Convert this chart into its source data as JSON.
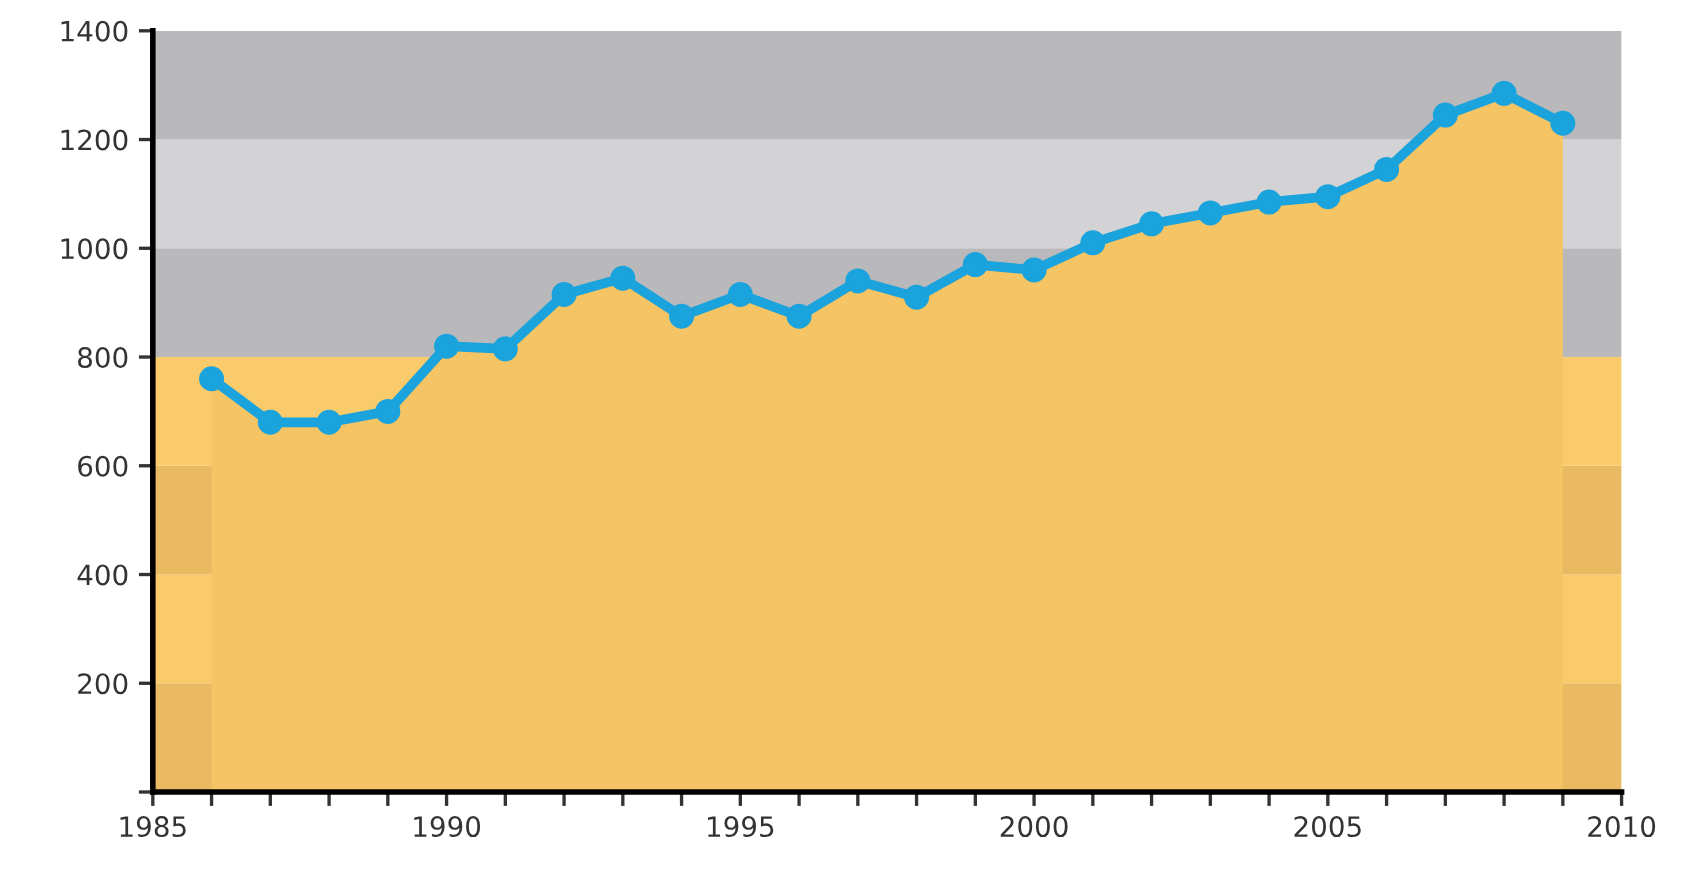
{
  "chart_data": {
    "type": "line",
    "x": [
      1986,
      1987,
      1988,
      1989,
      1990,
      1991,
      1992,
      1993,
      1994,
      1995,
      1996,
      1997,
      1998,
      1999,
      2000,
      2001,
      2002,
      2003,
      2004,
      2005,
      2006,
      2007,
      2008,
      2009
    ],
    "series": [
      {
        "type": "area",
        "marker": "none",
        "color": "#f5c465",
        "values": [
          760,
          680,
          680,
          700,
          820,
          815,
          915,
          945,
          875,
          915,
          875,
          940,
          910,
          970,
          960,
          1010,
          1045,
          1065,
          1085,
          1095,
          1145,
          1245,
          1285,
          1230
        ]
      },
      {
        "color": "#1aa3dc",
        "values": [
          760,
          680,
          680,
          700,
          820,
          815,
          915,
          945,
          875,
          915,
          875,
          940,
          910,
          970,
          960,
          1010,
          1045,
          1065,
          1085,
          1095,
          1145,
          1245,
          1285,
          1230
        ]
      }
    ],
    "marker": "circle",
    "line_style": "solid",
    "grid": false,
    "legend": false,
    "xlim": [
      1985,
      2010
    ],
    "ylim": [
      0,
      1400
    ],
    "xticks": [
      1985,
      {
        "value": 1986,
        "label": null
      },
      {
        "value": 1987,
        "label": null
      },
      {
        "value": 1988,
        "label": null
      },
      {
        "value": 1989,
        "label": null
      },
      1990,
      {
        "value": 1991,
        "label": null
      },
      {
        "value": 1992,
        "label": null
      },
      {
        "value": 1993,
        "label": null
      },
      {
        "value": 1994,
        "label": null
      },
      1995,
      {
        "value": 1996,
        "label": null
      },
      {
        "value": 1997,
        "label": null
      },
      {
        "value": 1998,
        "label": null
      },
      {
        "value": 1999,
        "label": null
      },
      2000,
      {
        "value": 2001,
        "label": null
      },
      {
        "value": 2002,
        "label": null
      },
      {
        "value": 2003,
        "label": null
      },
      {
        "value": 2004,
        "label": null
      },
      2005,
      {
        "value": 2006,
        "label": null
      },
      {
        "value": 2007,
        "label": null
      },
      {
        "value": 2008,
        "label": null
      },
      {
        "value": 2009,
        "label": null
      },
      2010
    ],
    "yticks": [
      {
        "value": 0,
        "label": null
      },
      200,
      400,
      600,
      800,
      1000,
      1200,
      1400
    ],
    "bands": [
      {
        "axis": "y",
        "from": 0,
        "to": 200,
        "color": "#e9ba62"
      },
      {
        "axis": "y",
        "from": 200,
        "to": 400,
        "color": "#f9cb6b"
      },
      {
        "axis": "y",
        "from": 400,
        "to": 600,
        "color": "#e9ba62"
      },
      {
        "axis": "y",
        "from": 600,
        "to": 800,
        "color": "#f9cb6b"
      },
      {
        "axis": "y",
        "from": 800,
        "to": 1000,
        "color": "#b9b9bb"
      },
      {
        "axis": "y",
        "from": 1000,
        "to": 1200,
        "color": "#d3d3d5"
      },
      {
        "axis": "y",
        "from": 1200,
        "to": 1400,
        "color": "#b9b9bb"
      }
    ]
  }
}
